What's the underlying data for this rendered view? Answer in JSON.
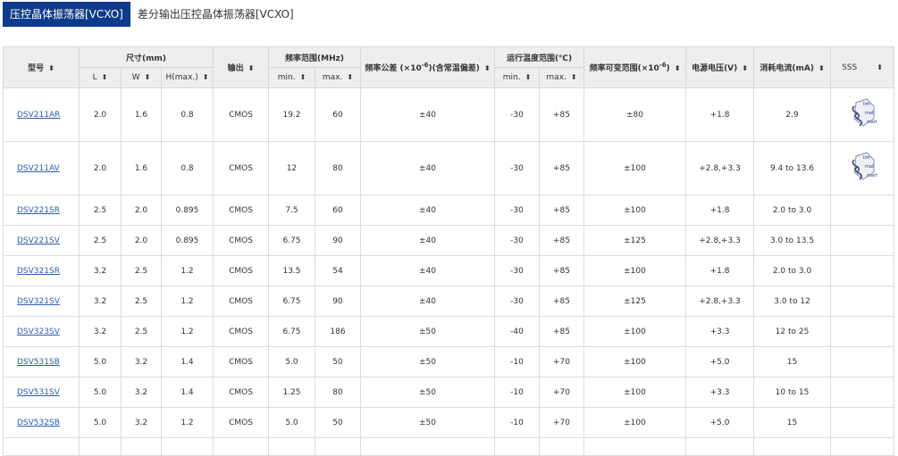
{
  "tabs": [
    "压控晶体振荡器[VCXO]",
    "差分输出压控晶体振荡器[VCXO]"
  ],
  "headers": {
    "model": "型号",
    "size": "尺寸(mm)",
    "L": "L",
    "W": "W",
    "H": "H(max.)",
    "output": "输出",
    "freq_range": "频率范围(MHz)",
    "min": "min.",
    "max": "max.",
    "tolerance": "频率公差 (×10",
    "tolerance_exp": "-6",
    "tolerance_tail": ")(含常温偏差)",
    "temp": "运行温度范围(℃)",
    "pull": "频率可变范围(×10",
    "pull_exp": "-6",
    "pull_tail": ")",
    "voltage": "电源电压(V)",
    "current": "消耗电流(mA)",
    "sss": "SSS"
  },
  "sort_icon": "sort-up-down-icon",
  "rows": [
    [
      "DSV211AR",
      "2.0",
      "1.6",
      "0.8",
      "CMOS",
      "19.2",
      "60",
      "±40",
      "-30",
      "+85",
      "±80",
      "+1.8",
      "2.9",
      true
    ],
    [
      "DSV211AV",
      "2.0",
      "1.6",
      "0.8",
      "CMOS",
      "12",
      "80",
      "±40",
      "-30",
      "+85",
      "±100",
      "+2.8,+3.3",
      "9.4 to 13.6",
      true
    ],
    [
      "DSV221SR",
      "2.5",
      "2.0",
      "0.895",
      "CMOS",
      "7.5",
      "60",
      "±40",
      "-30",
      "+85",
      "±100",
      "+1.8",
      "2.0 to 3.0",
      false
    ],
    [
      "DSV221SV",
      "2.5",
      "2.0",
      "0.895",
      "CMOS",
      "6.75",
      "90",
      "±40",
      "-30",
      "+85",
      "±125",
      "+2.8,+3.3",
      "3.0 to 13.5",
      false
    ],
    [
      "DSV321SR",
      "3.2",
      "2.5",
      "1.2",
      "CMOS",
      "13.5",
      "54",
      "±40",
      "-30",
      "+85",
      "±100",
      "+1.8",
      "2.0 to 3.0",
      false
    ],
    [
      "DSV321SV",
      "3.2",
      "2.5",
      "1.2",
      "CMOS",
      "6.75",
      "90",
      "±40",
      "-30",
      "+85",
      "±125",
      "+2.8,+3.3",
      "3.0 to 12",
      false
    ],
    [
      "DSV323SV",
      "3.2",
      "2.5",
      "1.2",
      "CMOS",
      "6.75",
      "186",
      "±50",
      "-40",
      "+85",
      "±100",
      "+3.3",
      "12 to 25",
      false
    ],
    [
      "DSV531SB",
      "5.0",
      "3.2",
      "1.4",
      "CMOS",
      "5.0",
      "50",
      "±50",
      "-10",
      "+70",
      "±100",
      "+5.0",
      "15",
      false
    ],
    [
      "DSV531SV",
      "5.0",
      "3.2",
      "1.4",
      "CMOS",
      "1.25",
      "80",
      "±50",
      "-10",
      "+70",
      "±100",
      "+3.3",
      "10 to 15",
      false
    ],
    [
      "DSV532SB",
      "5.0",
      "3.2",
      "1.2",
      "CMOS",
      "5.0",
      "50",
      "±50",
      "-10",
      "+70",
      "±100",
      "+5.0",
      "15",
      false
    ]
  ],
  "sss_logo_text": "Slim Small Smart"
}
